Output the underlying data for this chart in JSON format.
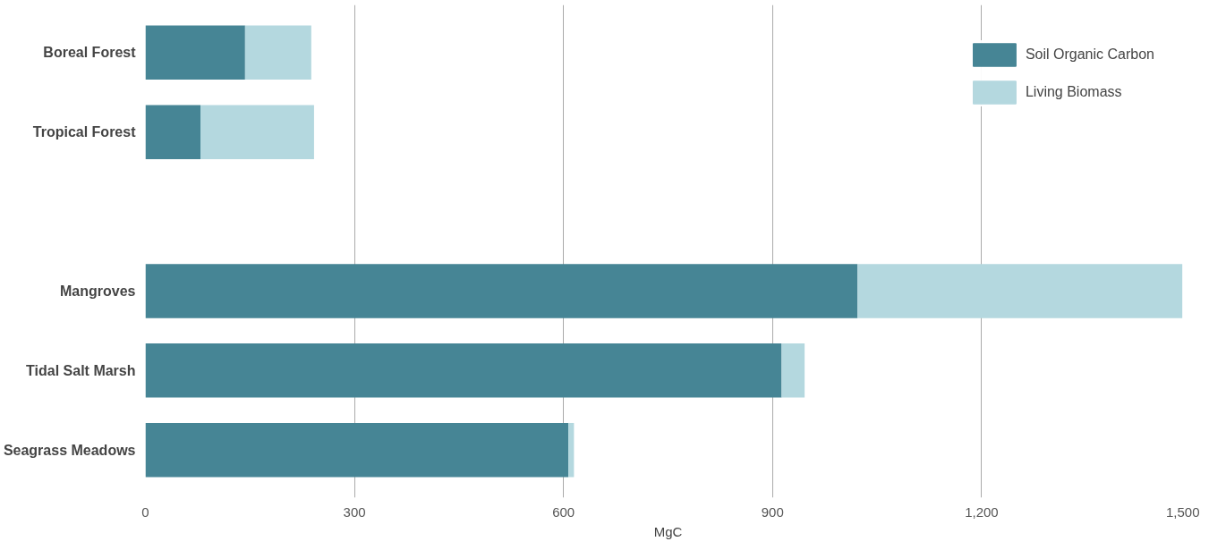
{
  "chart_data": {
    "type": "bar",
    "orientation": "horizontal",
    "stacked": true,
    "categories": [
      "Boreal Forest",
      "Tropical Forest",
      null,
      "Mangroves",
      "Tidal Salt Marsh",
      "Seagrass Meadows"
    ],
    "series": [
      {
        "name": "Soil Organic Carbon",
        "color": "#468595",
        "values": [
          143,
          79,
          null,
          1022,
          913,
          607
        ]
      },
      {
        "name": "Living Biomass",
        "color": "#b4d8df",
        "values": [
          95,
          163,
          null,
          466,
          33,
          8
        ]
      }
    ],
    "xlabel": "MgC",
    "xlim": [
      0,
      1500
    ],
    "xticks": [
      0,
      300,
      600,
      900,
      {
        "value": 1200,
        "label": "1,200"
      },
      {
        "value": 1500,
        "label": "1,500"
      }
    ],
    "grid": "x",
    "legend": "top right"
  }
}
